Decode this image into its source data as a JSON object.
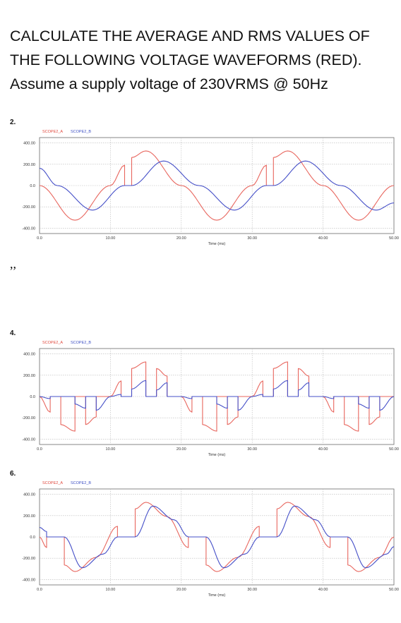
{
  "heading": "CALCULATE THE AVERAGE AND RMS VALUES OF THE FOLLOWING VOLTAGE WAVEFORMS (RED). Assume a supply voltage of 230VRMS @ 50Hz",
  "separator_text": ",,",
  "colors": {
    "series_a": "#e8665e",
    "series_b": "#4650c8",
    "grid": "#b8b8b8",
    "frame": "#6a6a6a"
  },
  "chart_data": [
    {
      "number": "2.",
      "type": "line",
      "legend": [
        "SCOPE2_A",
        "SCOPE2_B"
      ],
      "xlabel": "Time (ms)",
      "ylabel": "",
      "xlim": [
        0,
        50
      ],
      "ylim": [
        -450,
        450
      ],
      "x_ticks": [
        "0.0",
        "10.00",
        "20.00",
        "30.00",
        "40.00",
        "50.00"
      ],
      "y_ticks": [
        "400.00",
        "200.00",
        "0.0",
        "-200.00",
        "-400.00"
      ],
      "grid": true,
      "period_ms": 20,
      "series": [
        {
          "name": "SCOPE2_A",
          "x": [
            0,
            5,
            10,
            12,
            12,
            13,
            13,
            15,
            20,
            25,
            30,
            32,
            32,
            33,
            33,
            35,
            40,
            45,
            50
          ],
          "y": [
            0,
            -325,
            0,
            191,
            0,
            0,
            263,
            325,
            0,
            -325,
            0,
            191,
            0,
            0,
            263,
            325,
            0,
            -325,
            0
          ]
        },
        {
          "name": "SCOPE2_B",
          "x": [
            0,
            2.5,
            7.5,
            12,
            13,
            17.5,
            22.5,
            27.5,
            32,
            33,
            37.5,
            42.5,
            47.5,
            50
          ],
          "y": [
            163,
            0,
            -230,
            0,
            0,
            230,
            0,
            -230,
            0,
            0,
            230,
            0,
            -230,
            -163
          ]
        }
      ]
    },
    {
      "number": "4.",
      "type": "line",
      "legend": [
        "SCOPE2_A",
        "SCOPE2_B"
      ],
      "xlabel": "Time (ms)",
      "ylabel": "",
      "xlim": [
        0,
        50
      ],
      "ylim": [
        -450,
        450
      ],
      "x_ticks": [
        "0.0",
        "10.00",
        "20.00",
        "30.00",
        "40.00",
        "50.00"
      ],
      "y_ticks": [
        "400.00",
        "200.00",
        "0.0",
        "-200.00",
        "-400.00"
      ],
      "grid": true,
      "period_ms": 20,
      "series": [
        {
          "name": "SCOPE2_A",
          "x": [
            0,
            1.5,
            1.5,
            3,
            3,
            5,
            5,
            6.5,
            6.5,
            8,
            8,
            10,
            10,
            11.5,
            11.5,
            13,
            13,
            15,
            15,
            16.5,
            16.5,
            18,
            18,
            20
          ],
          "y": [
            0,
            -147,
            0,
            0,
            -263,
            -325,
            0,
            0,
            -263,
            -191,
            0,
            0,
            0,
            147,
            0,
            0,
            263,
            325,
            0,
            0,
            263,
            191,
            0,
            0
          ]
        },
        {
          "name": "SCOPE2_B",
          "x": [
            0,
            1.5,
            1.5,
            5,
            5,
            6.5,
            6.5,
            8,
            8,
            10,
            11.5,
            11.5,
            13,
            13,
            15,
            15,
            16.5,
            16.5,
            18,
            18,
            20
          ],
          "y": [
            0,
            -20,
            0,
            0,
            -70,
            -110,
            0,
            0,
            -130,
            0,
            20,
            0,
            0,
            70,
            150,
            0,
            0,
            60,
            130,
            0,
            0
          ]
        }
      ]
    },
    {
      "number": "6.",
      "type": "line",
      "legend": [
        "SCOPE2_A",
        "SCOPE2_B"
      ],
      "xlabel": "Time (ms)",
      "ylabel": "",
      "xlim": [
        0,
        50
      ],
      "ylim": [
        -450,
        450
      ],
      "x_ticks": [
        "0.0",
        "10.00",
        "20.00",
        "30.00",
        "40.00",
        "50.00"
      ],
      "y_ticks": [
        "400.00",
        "200.00",
        "0.0",
        "-200.00",
        "-400.00"
      ],
      "grid": true,
      "period_ms": 20,
      "series": [
        {
          "name": "SCOPE2_A",
          "x": [
            0,
            1,
            1,
            3.5,
            3.5,
            5,
            8,
            11,
            11,
            13.5,
            13.5,
            15,
            18,
            21,
            21,
            23.5,
            23.5,
            25,
            28,
            31,
            31,
            33.5,
            33.5,
            35,
            38,
            41,
            41,
            43.5,
            43.5,
            45,
            48,
            50
          ],
          "y": [
            0,
            -100,
            0,
            0,
            -263,
            -325,
            -191,
            100,
            0,
            0,
            263,
            325,
            191,
            -100,
            0,
            0,
            -263,
            -325,
            -191,
            100,
            0,
            0,
            263,
            325,
            191,
            -100,
            0,
            0,
            -263,
            -325,
            -191,
            0
          ]
        },
        {
          "name": "SCOPE2_B",
          "x": [
            0,
            1,
            1,
            3.5,
            3.5,
            6,
            9,
            11,
            11,
            13.5,
            13.5,
            16,
            19,
            21,
            21,
            23.5,
            23.5,
            26,
            29,
            31,
            31,
            33.5,
            33.5,
            36,
            39,
            41,
            41,
            43.5,
            43.5,
            46,
            49,
            50
          ],
          "y": [
            90,
            50,
            0,
            0,
            0,
            -290,
            -160,
            0,
            0,
            0,
            0,
            290,
            160,
            0,
            0,
            0,
            0,
            -290,
            -160,
            0,
            0,
            0,
            0,
            290,
            160,
            0,
            0,
            0,
            0,
            -290,
            -160,
            -90
          ]
        }
      ]
    }
  ]
}
